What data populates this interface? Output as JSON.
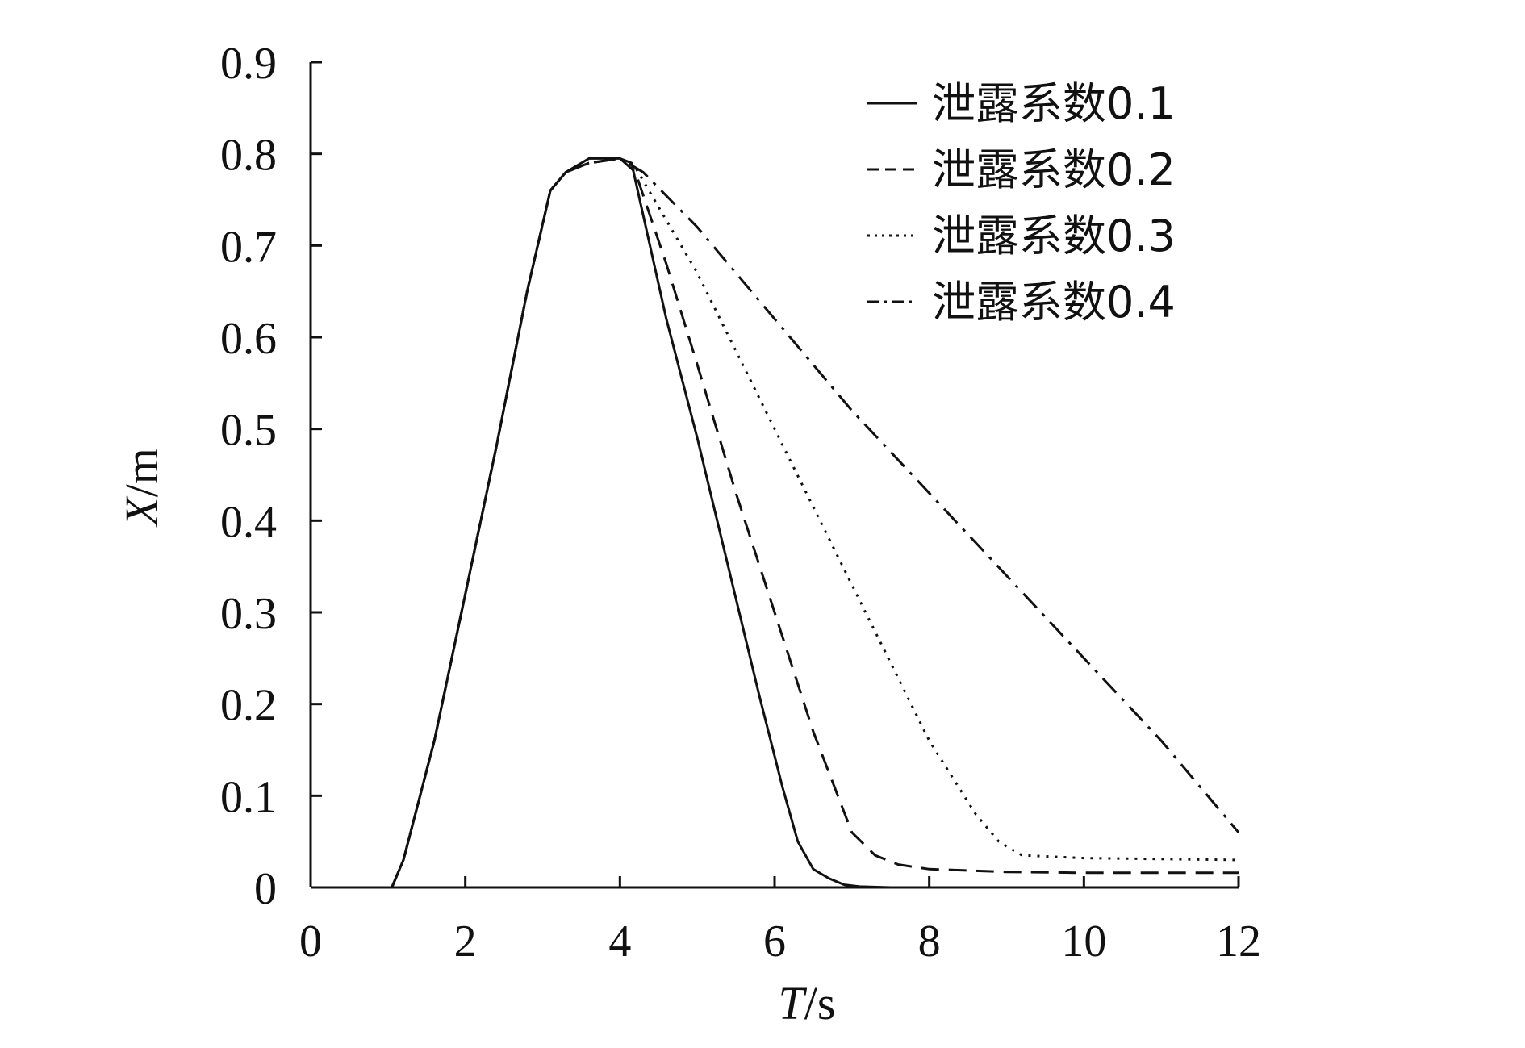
{
  "chart_data": {
    "type": "line",
    "title": "",
    "xlabel_italic": "T",
    "xlabel_unit": "/s",
    "ylabel_italic": "X",
    "ylabel_unit": "/m",
    "xlim": [
      0,
      12
    ],
    "ylim": [
      0,
      0.9
    ],
    "x_ticks": [
      0,
      2,
      4,
      6,
      8,
      10,
      12
    ],
    "y_ticks": [
      0,
      0.1,
      0.2,
      0.3,
      0.4,
      0.5,
      0.6,
      0.7,
      0.8,
      0.9
    ],
    "x_tick_labels": [
      "0",
      "2",
      "4",
      "6",
      "8",
      "10",
      "12"
    ],
    "y_tick_labels": [
      "0",
      "0.1",
      "0.2",
      "0.3",
      "0.4",
      "0.5",
      "0.6",
      "0.7",
      "0.8",
      "0.9"
    ],
    "grid": false,
    "legend_position": "top-right",
    "series": [
      {
        "name": "泄露系数0.1",
        "line_style": "solid",
        "color": "#111111",
        "x": [
          0,
          1.05,
          1.2,
          1.6,
          2.0,
          2.4,
          2.8,
          3.1,
          3.3,
          3.6,
          4.0,
          4.15,
          4.6,
          5.0,
          5.4,
          5.8,
          6.1,
          6.3,
          6.5,
          6.7,
          6.9,
          7.1,
          7.5
        ],
        "y": [
          0,
          0,
          0.03,
          0.16,
          0.32,
          0.48,
          0.65,
          0.76,
          0.78,
          0.795,
          0.795,
          0.79,
          0.62,
          0.49,
          0.35,
          0.21,
          0.11,
          0.05,
          0.02,
          0.01,
          0.003,
          0.001,
          0
        ]
      },
      {
        "name": "泄露系数0.2",
        "line_style": "dashed",
        "color": "#111111",
        "x": [
          0,
          1.05,
          1.2,
          1.6,
          2.0,
          2.4,
          2.8,
          3.1,
          3.3,
          3.6,
          4.0,
          4.2,
          4.6,
          5.0,
          5.5,
          6.0,
          6.5,
          7.0,
          7.3,
          7.6,
          8.0,
          9.0,
          10.0,
          11.0,
          12.0
        ],
        "y": [
          0,
          0,
          0.03,
          0.16,
          0.32,
          0.48,
          0.65,
          0.76,
          0.78,
          0.79,
          0.795,
          0.78,
          0.68,
          0.57,
          0.43,
          0.3,
          0.17,
          0.06,
          0.035,
          0.025,
          0.02,
          0.017,
          0.016,
          0.016,
          0.016
        ]
      },
      {
        "name": "泄露系数0.3",
        "line_style": "dotted",
        "color": "#111111",
        "x": [
          0,
          1.05,
          1.2,
          1.6,
          2.0,
          2.4,
          2.8,
          3.1,
          3.3,
          3.6,
          4.0,
          4.2,
          5.0,
          6.0,
          7.0,
          8.0,
          8.6,
          8.9,
          9.2,
          10.0,
          11.0,
          12.0
        ],
        "y": [
          0,
          0,
          0.03,
          0.16,
          0.32,
          0.48,
          0.65,
          0.76,
          0.78,
          0.79,
          0.795,
          0.785,
          0.67,
          0.5,
          0.33,
          0.16,
          0.08,
          0.05,
          0.035,
          0.032,
          0.031,
          0.03
        ]
      },
      {
        "name": "泄露系数0.4",
        "line_style": "dashdot",
        "color": "#111111",
        "x": [
          0,
          1.05,
          1.2,
          1.6,
          2.0,
          2.4,
          2.8,
          3.1,
          3.3,
          3.6,
          4.0,
          4.3,
          5.0,
          6.0,
          7.0,
          8.0,
          9.0,
          10.0,
          11.0,
          12.0
        ],
        "y": [
          0,
          0,
          0.03,
          0.16,
          0.32,
          0.48,
          0.65,
          0.76,
          0.78,
          0.79,
          0.795,
          0.78,
          0.72,
          0.62,
          0.52,
          0.43,
          0.34,
          0.25,
          0.16,
          0.06
        ]
      }
    ]
  }
}
